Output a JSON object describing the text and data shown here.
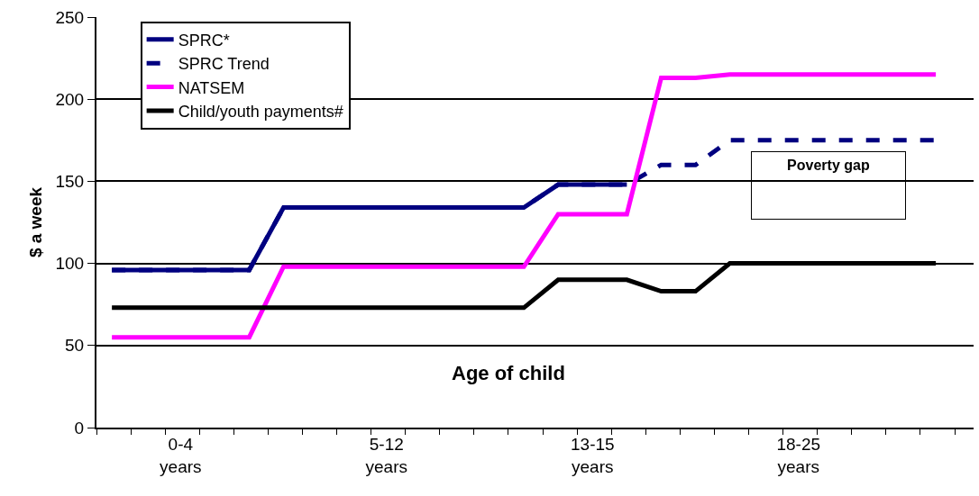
{
  "chart_data": {
    "type": "line",
    "xlabel": "Age of child",
    "ylabel": "$ a week",
    "categories": [
      null,
      null,
      "0-4 years",
      null,
      null,
      null,
      null,
      null,
      "5-12 years",
      null,
      null,
      null,
      null,
      null,
      "13-15 years",
      null,
      null,
      null,
      null,
      null,
      "18-25 years",
      null,
      null,
      null,
      null
    ],
    "series": [
      {
        "name": "SPRC*",
        "color": "#000080",
        "line_style": "solid",
        "values": [
          96,
          96,
          96,
          96,
          96,
          134,
          134,
          134,
          134,
          134,
          134,
          134,
          134,
          148,
          148,
          148,
          null,
          null,
          null,
          null,
          null,
          null,
          null,
          null,
          null
        ]
      },
      {
        "name": "SPRC Trend",
        "color": "#000080",
        "line_style": "dashed",
        "values": [
          96,
          96,
          96,
          96,
          96,
          134,
          134,
          134,
          134,
          134,
          134,
          134,
          134,
          148,
          148,
          148,
          160,
          160,
          175,
          175,
          175,
          175,
          175,
          175,
          175
        ]
      },
      {
        "name": "NATSEM",
        "color": "#ff00ff",
        "line_style": "solid",
        "values": [
          55,
          55,
          55,
          55,
          55,
          98,
          98,
          98,
          98,
          98,
          98,
          98,
          98,
          130,
          130,
          130,
          213,
          213,
          215,
          215,
          215,
          215,
          215,
          215,
          215
        ]
      },
      {
        "name": "Child/youth payments#",
        "color": "#000000",
        "line_style": "solid",
        "values": [
          73,
          73,
          73,
          73,
          73,
          73,
          73,
          73,
          73,
          73,
          73,
          73,
          73,
          90,
          90,
          90,
          83,
          83,
          100,
          100,
          100,
          100,
          100,
          100,
          100
        ]
      }
    ],
    "annotations": [
      "Poverty gap"
    ],
    "ylim": [
      0,
      250
    ],
    "yticks": [
      0,
      50,
      100,
      150,
      200,
      250
    ],
    "grid": "y",
    "legend": "top left",
    "marker": "none"
  }
}
